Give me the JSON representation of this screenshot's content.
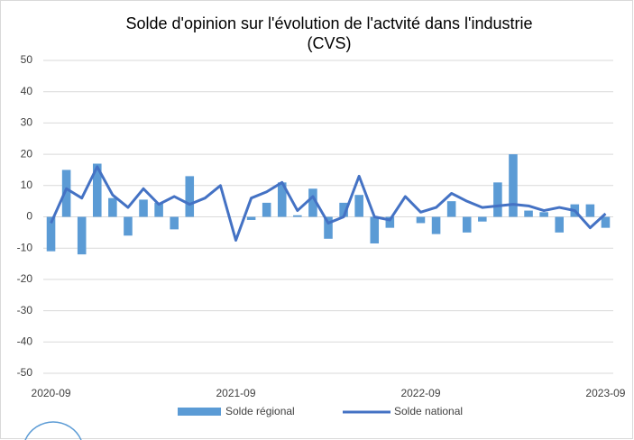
{
  "chart_data": {
    "type": "bar",
    "title": "Solde d'opinion sur l'évolution de l'actvité dans l'industrie",
    "subtitle": "(CVS)",
    "categories": [
      "2020-09",
      null,
      null,
      null,
      null,
      null,
      null,
      null,
      null,
      null,
      null,
      null,
      "2021-09",
      null,
      null,
      null,
      null,
      null,
      null,
      null,
      null,
      null,
      null,
      null,
      "2022-09",
      null,
      null,
      null,
      null,
      null,
      null,
      null,
      null,
      null,
      null,
      null,
      "2023-09"
    ],
    "series": [
      {
        "name": "Solde régional",
        "type": "bar",
        "color": "#5b9bd5",
        "values": [
          -11,
          15,
          -12,
          17,
          6,
          -6,
          5.5,
          4.5,
          -4,
          13,
          0,
          0,
          0,
          -1,
          4.5,
          11,
          0.5,
          9,
          -7,
          4.5,
          7,
          -8.5,
          -3.5,
          0,
          -2,
          -5.5,
          5,
          -5,
          -1.5,
          11,
          20,
          2,
          1.5,
          -5,
          4,
          4,
          -3.5
        ]
      },
      {
        "name": "Solde national",
        "type": "line",
        "color": "#4472c4",
        "values": [
          -2,
          9,
          6,
          16,
          7,
          3,
          9,
          4,
          6.5,
          4,
          6,
          10,
          -7.5,
          6,
          8,
          11,
          2,
          6.5,
          -2,
          0,
          13,
          0,
          -1,
          6.5,
          1.5,
          3,
          7.5,
          5,
          3,
          3.5,
          4,
          3.5,
          2,
          3,
          2,
          -3.5,
          1
        ]
      }
    ],
    "ylim": [
      -50,
      50
    ],
    "yticks": [
      -50,
      -40,
      -30,
      -20,
      -10,
      0,
      10,
      20,
      30,
      40,
      50
    ],
    "grid": true,
    "legend": "bottom"
  }
}
